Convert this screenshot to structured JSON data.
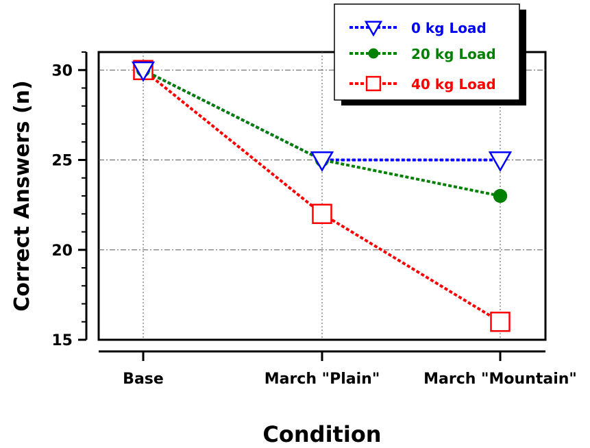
{
  "chart_data": {
    "type": "line",
    "title": "",
    "xlabel": "Condition",
    "ylabel": "Correct Answers (n)",
    "categories": [
      "Base",
      "March \"Plain\"",
      "March \"Mountain\""
    ],
    "ylim": [
      15,
      31
    ],
    "yticks": [
      "15",
      "20",
      "25",
      "30"
    ],
    "grid": true,
    "legend_position": "top-right",
    "series": [
      {
        "name": "0 kg Load",
        "values": [
          30,
          25,
          25
        ],
        "color": "#0000ff",
        "marker": "triangle-down-open"
      },
      {
        "name": "20 kg Load",
        "values": [
          30,
          25,
          23
        ],
        "color": "#008000",
        "marker": "circle-filled"
      },
      {
        "name": "40 kg Load",
        "values": [
          30,
          22,
          16
        ],
        "color": "#ff0000",
        "marker": "square-open"
      }
    ]
  }
}
